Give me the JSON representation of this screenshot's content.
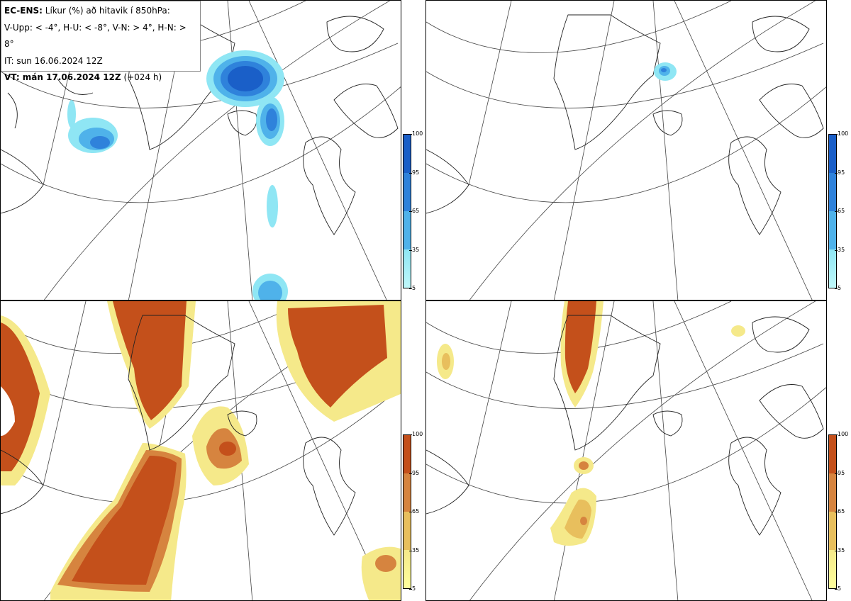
{
  "info": {
    "line1_bold": "EC-ENS:",
    "line1_rest": "Líkur (%) að hitavik í 850hPa:",
    "line2": "V-Upp: < -4°, H-U: < -8°, V-N: > 4°, H-N: > 8°",
    "line3": "IT: sun 16.06.2024 12Z",
    "line4_bold": "VT: mán 17.06.2024 12Z",
    "line4_rest": "(+024 h)"
  },
  "colorbars": {
    "blue": {
      "ticks": [
        "100",
        "95",
        "65",
        "35",
        "5"
      ],
      "colors": [
        "#1a5fc8",
        "#2f82db",
        "#4fb2ea",
        "#8fe6f4",
        "#bff8fa"
      ]
    },
    "orange": {
      "ticks": [
        "100",
        "95",
        "65",
        "35",
        "5"
      ],
      "colors": [
        "#c4501b",
        "#d6843f",
        "#e8bf5d",
        "#f5e98a",
        "#ffff9c"
      ]
    }
  },
  "panels": [
    {
      "id": "top-left",
      "scale": "blue"
    },
    {
      "id": "top-right",
      "scale": "blue"
    },
    {
      "id": "bottom-left",
      "scale": "orange"
    },
    {
      "id": "bottom-right",
      "scale": "orange"
    }
  ]
}
